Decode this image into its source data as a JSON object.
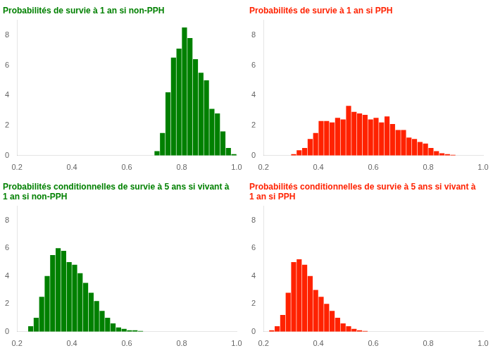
{
  "chart_data": [
    {
      "type": "histogram",
      "title": "Probabilités de survie à 1 an si non-PPH",
      "color": "#008000",
      "bins": [
        0.7,
        0.72,
        0.74,
        0.76,
        0.78,
        0.8,
        0.82,
        0.84,
        0.86,
        0.88,
        0.9,
        0.92,
        0.94,
        0.96,
        0.98,
        1.0
      ],
      "values": [
        0.3,
        1.5,
        4.2,
        6.5,
        7.1,
        8.5,
        7.8,
        6.4,
        5.5,
        5.0,
        3.1,
        2.8,
        1.6,
        0.5,
        0.1
      ],
      "xlim": [
        0.2,
        1.0
      ],
      "xticks": [
        0.2,
        0.4,
        0.6,
        0.8,
        {
          "value": 1.0,
          "label": "1.0"
        }
      ],
      "ylim": [
        0,
        9
      ],
      "yticks": [
        0,
        2,
        4,
        6,
        8
      ],
      "grid": false
    },
    {
      "type": "histogram",
      "title": "Probabilités de survie à 1 an si PPH",
      "color": "#ff2200",
      "bins": [
        0.3,
        0.32,
        0.34,
        0.36,
        0.38,
        0.4,
        0.42,
        0.44,
        0.46,
        0.48,
        0.5,
        0.52,
        0.54,
        0.56,
        0.58,
        0.6,
        0.62,
        0.64,
        0.66,
        0.68,
        0.7,
        0.72,
        0.74,
        0.76,
        0.78,
        0.8,
        0.82,
        0.84,
        0.86,
        0.88,
        0.9,
        0.92,
        0.94,
        0.96,
        0.98
      ],
      "values": [
        0.1,
        0.35,
        0.5,
        1.1,
        1.5,
        2.3,
        2.3,
        2.2,
        2.5,
        2.4,
        3.3,
        2.9,
        2.8,
        2.7,
        2.4,
        2.5,
        2.2,
        2.6,
        2.1,
        1.7,
        1.7,
        1.2,
        1.1,
        0.9,
        0.8,
        0.5,
        0.3,
        0.15,
        0.1,
        0.05,
        0.0,
        0.0,
        0.0,
        0.0
      ],
      "xlim": [
        0.2,
        1.0
      ],
      "xticks": [
        0.2,
        0.4,
        0.6,
        0.8,
        {
          "value": 1.0,
          "label": "1.0"
        }
      ],
      "ylim": [
        0,
        9
      ],
      "yticks": [
        0,
        2,
        4,
        6,
        8
      ],
      "grid": false
    },
    {
      "type": "histogram",
      "title": "Probabilités conditionnelles de survie à 5 ans si vivant à 1 an si non-PPH",
      "color": "#008000",
      "bins": [
        0.24,
        0.26,
        0.28,
        0.3,
        0.32,
        0.34,
        0.36,
        0.38,
        0.4,
        0.42,
        0.44,
        0.46,
        0.48,
        0.5,
        0.52,
        0.54,
        0.56,
        0.58,
        0.6,
        0.62,
        0.64,
        0.66
      ],
      "values": [
        0.4,
        1.0,
        2.5,
        4.0,
        5.5,
        6.0,
        5.8,
        5.0,
        4.8,
        4.2,
        3.5,
        2.8,
        2.2,
        1.5,
        1.0,
        0.6,
        0.3,
        0.2,
        0.1,
        0.1,
        0.05
      ],
      "xlim": [
        0.2,
        1.0
      ],
      "xticks": [
        0.2,
        0.4,
        0.6,
        0.8,
        {
          "value": 1.0,
          "label": "1.0"
        }
      ],
      "ylim": [
        0,
        9
      ],
      "yticks": [
        0,
        2,
        4,
        6,
        8
      ],
      "grid": false
    },
    {
      "type": "histogram",
      "title": "Probabilités conditionnelles de survie à 5 ans si vivant à 1 an si PPH",
      "color": "#ff2200",
      "bins": [
        0.22,
        0.24,
        0.26,
        0.28,
        0.3,
        0.32,
        0.34,
        0.36,
        0.38,
        0.4,
        0.42,
        0.44,
        0.46,
        0.48,
        0.5,
        0.52,
        0.54,
        0.56,
        0.58,
        0.6,
        0.62
      ],
      "values": [
        0.1,
        0.4,
        1.2,
        2.8,
        5.0,
        5.2,
        4.8,
        4.0,
        3.0,
        2.5,
        2.0,
        1.5,
        1.0,
        0.6,
        0.4,
        0.2,
        0.1,
        0.05,
        0.0,
        0.0
      ],
      "xlim": [
        0.2,
        1.0
      ],
      "xticks": [
        0.2,
        0.4,
        0.6,
        0.8,
        {
          "value": 1.0,
          "label": "1.0"
        }
      ],
      "ylim": [
        0,
        9
      ],
      "yticks": [
        0,
        2,
        4,
        6,
        8
      ],
      "grid": false
    }
  ]
}
